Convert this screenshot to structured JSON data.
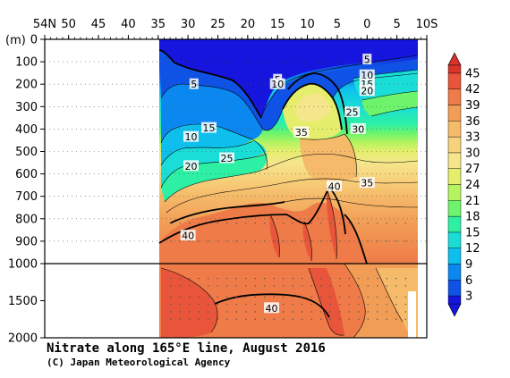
{
  "chart_data": {
    "type": "contour-section",
    "title": "Nitrate along 165°E line, August 2016",
    "credit": "(C) Japan Meteorological Agency",
    "y_unit": "(m)",
    "x_ticks": [
      "54N",
      "50",
      "45",
      "40",
      "35",
      "30",
      "25",
      "20",
      "15",
      "10",
      "5",
      "0",
      "5",
      "10S"
    ],
    "x_tick_lat": [
      54,
      50,
      45,
      40,
      35,
      30,
      25,
      20,
      15,
      10,
      5,
      0,
      -5,
      -10
    ],
    "upper_y_ticks": [
      0,
      100,
      200,
      300,
      400,
      500,
      600,
      700,
      800,
      900,
      1000
    ],
    "lower_y_ticks": [
      1500,
      2000
    ],
    "ylim": [
      0,
      2000
    ],
    "x_range": [
      54,
      -10
    ],
    "data_coverage_lat": [
      35,
      -8
    ],
    "colorbar_levels": [
      3,
      6,
      9,
      12,
      15,
      18,
      21,
      24,
      27,
      30,
      33,
      36,
      39,
      42,
      45
    ],
    "colorbar_colors": [
      "#1515de",
      "#0f52e6",
      "#0b87f0",
      "#0ebfee",
      "#19ddd6",
      "#2ef0a4",
      "#6ef46c",
      "#b4f460",
      "#e4ee6c",
      "#f5e68c",
      "#f7d27c",
      "#f5ba6a",
      "#f29d56",
      "#ee7b48",
      "#e8553a",
      "#d8342a"
    ],
    "contour_labels": [
      {
        "text": "5",
        "lat": 29,
        "depth": 200
      },
      {
        "text": "5",
        "lat": 15,
        "depth": 180
      },
      {
        "text": "10",
        "lat": 15,
        "depth": 200
      },
      {
        "text": "5",
        "lat": 0,
        "depth": 90
      },
      {
        "text": "10",
        "lat": 0,
        "depth": 160
      },
      {
        "text": "15",
        "lat": 0,
        "depth": 200
      },
      {
        "text": "20",
        "lat": 0,
        "depth": 230
      },
      {
        "text": "25",
        "lat": 2.5,
        "depth": 325
      },
      {
        "text": "30",
        "lat": 1.5,
        "depth": 400
      },
      {
        "text": "35",
        "lat": 11,
        "depth": 415
      },
      {
        "text": "15",
        "lat": 26.5,
        "depth": 395
      },
      {
        "text": "10",
        "lat": 29.5,
        "depth": 435
      },
      {
        "text": "25",
        "lat": 23.5,
        "depth": 530
      },
      {
        "text": "20",
        "lat": 29.5,
        "depth": 565
      },
      {
        "text": "40",
        "lat": 5.5,
        "depth": 655
      },
      {
        "text": "35",
        "lat": 0,
        "depth": 640
      },
      {
        "text": "40",
        "lat": 30,
        "depth": 875
      },
      {
        "text": "40",
        "lat": 16,
        "depth": 1600
      }
    ]
  }
}
